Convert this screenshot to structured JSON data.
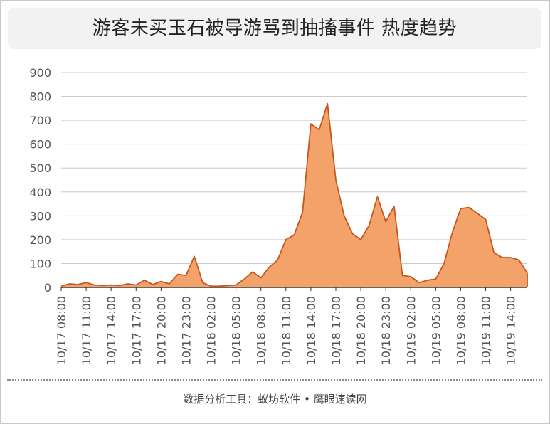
{
  "title": "游客未买玉石被导游骂到抽搐事件 热度趋势",
  "footer": "数据分析工具：蚁坊软件 • 鹰眼速读网",
  "colors": {
    "fill": "#f3a36a",
    "line": "#c8561d",
    "grid": "#cccccc",
    "axis": "#333333",
    "tick_text": "#555555"
  },
  "chart_data": {
    "type": "area",
    "title": "游客未买玉石被导游骂到抽搐事件 热度趋势",
    "xlabel": "",
    "ylabel": "",
    "ylim": [
      0,
      900
    ],
    "y_ticks": [
      0,
      100,
      200,
      300,
      400,
      500,
      600,
      700,
      800,
      900
    ],
    "grid": "horizontal",
    "legend": "none",
    "x": [
      "10/17 08:00",
      "10/17 09:00",
      "10/17 10:00",
      "10/17 11:00",
      "10/17 12:00",
      "10/17 13:00",
      "10/17 14:00",
      "10/17 15:00",
      "10/17 16:00",
      "10/17 17:00",
      "10/17 18:00",
      "10/17 19:00",
      "10/17 20:00",
      "10/17 21:00",
      "10/17 22:00",
      "10/17 23:00",
      "10/18 00:00",
      "10/18 01:00",
      "10/18 02:00",
      "10/18 03:00",
      "10/18 04:00",
      "10/18 05:00",
      "10/18 06:00",
      "10/18 07:00",
      "10/18 08:00",
      "10/18 09:00",
      "10/18 10:00",
      "10/18 11:00",
      "10/18 12:00",
      "10/18 13:00",
      "10/18 14:00",
      "10/18 15:00",
      "10/18 16:00",
      "10/18 17:00",
      "10/18 18:00",
      "10/18 19:00",
      "10/18 20:00",
      "10/18 21:00",
      "10/18 22:00",
      "10/18 23:00",
      "10/19 00:00",
      "10/19 01:00",
      "10/19 02:00",
      "10/19 03:00",
      "10/19 04:00",
      "10/19 05:00",
      "10/19 06:00",
      "10/19 07:00",
      "10/19 08:00",
      "10/19 09:00",
      "10/19 10:00",
      "10/19 11:00",
      "10/19 12:00",
      "10/19 13:00",
      "10/19 14:00",
      "10/19 15:00",
      "10/19 16:00"
    ],
    "x_tick_labels": [
      "10/17 08:00",
      "10/17 11:00",
      "10/17 14:00",
      "10/17 17:00",
      "10/17 20:00",
      "10/17 23:00",
      "10/18 02:00",
      "10/18 05:00",
      "10/18 08:00",
      "10/18 11:00",
      "10/18 14:00",
      "10/18 17:00",
      "10/18 20:00",
      "10/18 23:00",
      "10/19 02:00",
      "10/19 05:00",
      "10/19 08:00",
      "10/19 11:00",
      "10/19 14:00"
    ],
    "series": [
      {
        "values": [
          5,
          15,
          12,
          20,
          10,
          8,
          10,
          8,
          15,
          10,
          30,
          12,
          25,
          15,
          55,
          50,
          130,
          20,
          5,
          5,
          8,
          10,
          35,
          65,
          40,
          85,
          115,
          200,
          220,
          315,
          685,
          660,
          770,
          450,
          300,
          225,
          200,
          260,
          380,
          275,
          340,
          50,
          45,
          20,
          30,
          35,
          100,
          230,
          330,
          335,
          310,
          285,
          145,
          125,
          125,
          115,
          60
        ]
      }
    ]
  }
}
